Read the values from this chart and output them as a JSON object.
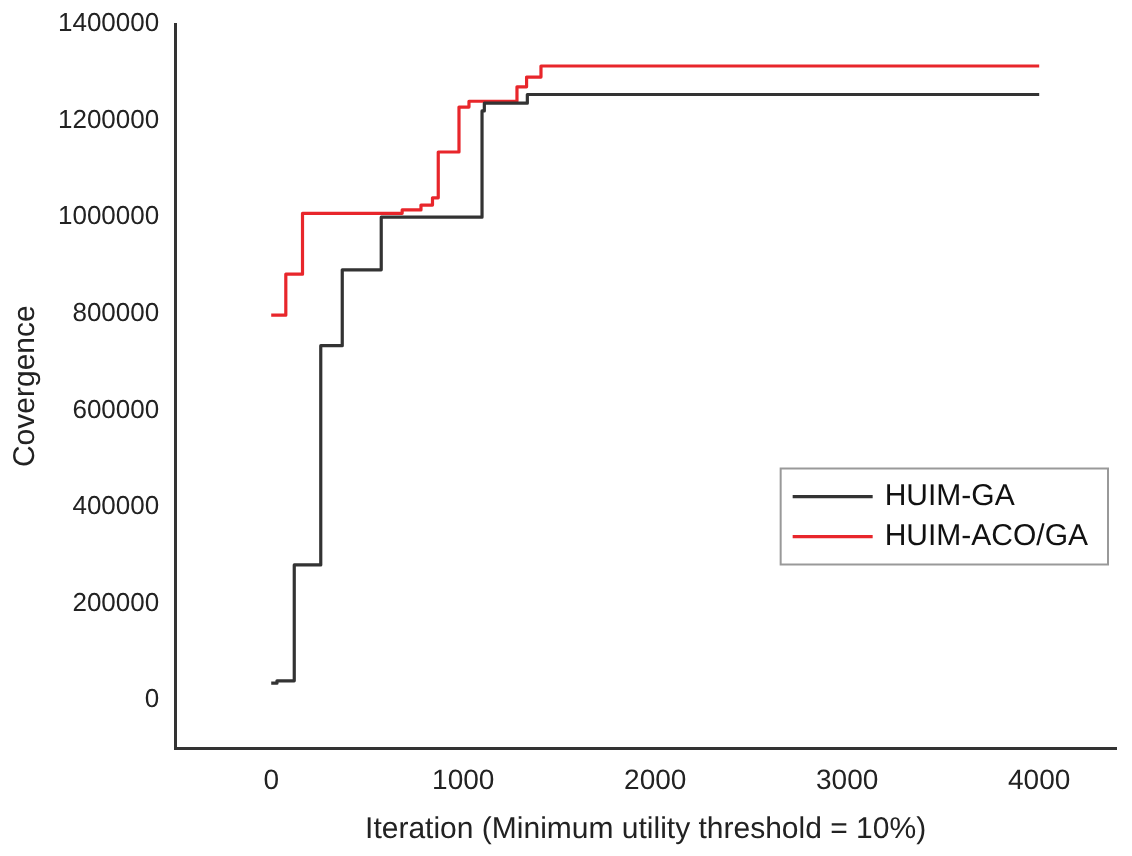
{
  "chart_data": {
    "type": "step",
    "xlabel": "Iteration (Minimum utility threshold = 10%)",
    "ylabel": "Covergence",
    "xlim": [
      -500,
      4400
    ],
    "xticks": [
      0,
      1000,
      2000,
      3000,
      4000
    ],
    "ylim": [
      -100000,
      1400000
    ],
    "yticks": [
      0,
      200000,
      400000,
      600000,
      800000,
      1000000,
      1200000,
      1400000
    ],
    "grid": false,
    "legend": "right",
    "marker": "none",
    "line_style": "solid",
    "series": [
      {
        "name": "HUIM-GA",
        "color": "#333333",
        "x": [
          0,
          30,
          120,
          258,
          370,
          573,
          1098,
          1110,
          1334,
          4000
        ],
        "values": [
          35000,
          40000,
          280000,
          734000,
          891000,
          1000000,
          1220000,
          1236000,
          1254000,
          1254000
        ]
      },
      {
        "name": "HUIM-ACO/GA",
        "color": "#e8262b",
        "x": [
          0,
          76,
          163,
          682,
          780,
          840,
          870,
          978,
          1030,
          1280,
          1330,
          1405,
          4000
        ],
        "values": [
          797000,
          882000,
          1008000,
          1015000,
          1025000,
          1040000,
          1135000,
          1228000,
          1240000,
          1270000,
          1290000,
          1313000,
          1313000
        ]
      }
    ]
  }
}
